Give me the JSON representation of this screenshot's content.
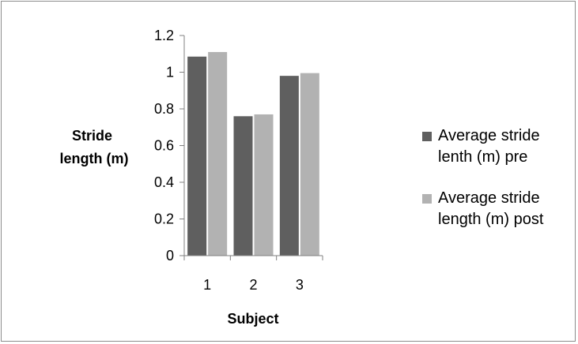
{
  "chart_data": {
    "type": "bar",
    "categories": [
      "1",
      "2",
      "3"
    ],
    "series": [
      {
        "name": "Average stride lenth (m) pre",
        "values": [
          1.085,
          0.76,
          0.98
        ],
        "color": "#5f5f5f"
      },
      {
        "name": "Average stride length (m) post",
        "values": [
          1.11,
          0.77,
          0.995
        ],
        "color": "#b2b2b2"
      }
    ],
    "title": "",
    "xlabel": "Subject",
    "ylabel": "Stride length (m)",
    "ylabel_lines": [
      "Stride",
      "length (m)"
    ],
    "ylim": [
      0,
      1.2
    ],
    "yticks": [
      0,
      0.2,
      0.4,
      0.6,
      0.8,
      1,
      1.2
    ],
    "ytick_labels": [
      "0",
      "0.2",
      "0.4",
      "0.6",
      "0.8",
      "1",
      "1.2"
    ],
    "grid": false,
    "legend": {
      "placement": "right",
      "entries": [
        {
          "lines": [
            "Average stride",
            "lenth (m) pre"
          ]
        },
        {
          "lines": [
            "Average stride",
            "length (m) post"
          ]
        }
      ]
    },
    "axis_color": "#808080"
  }
}
